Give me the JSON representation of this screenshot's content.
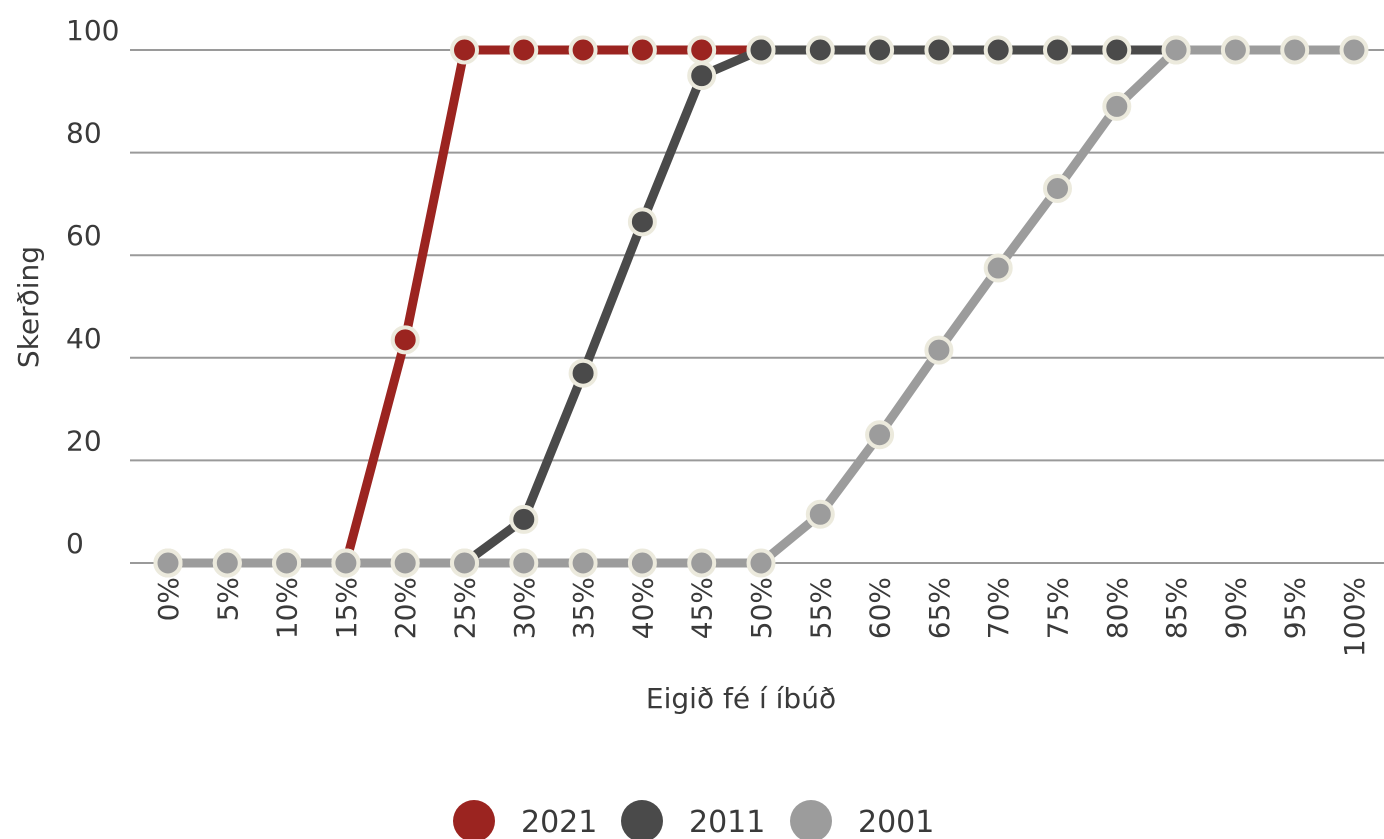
{
  "chart_data": {
    "type": "line",
    "title": "",
    "xlabel": "Eigið fé í íbúð",
    "ylabel": "Skerðing",
    "categories": [
      "0%",
      "5%",
      "10%",
      "15%",
      "20%",
      "25%",
      "30%",
      "35%",
      "40%",
      "45%",
      "50%",
      "55%",
      "60%",
      "65%",
      "70%",
      "75%",
      "80%",
      "85%",
      "90%",
      "95%",
      "100%"
    ],
    "yticks": [
      "0",
      "20",
      "40",
      "60",
      "80",
      "100"
    ],
    "ylim": [
      0,
      100
    ],
    "grid": true,
    "legend_position": "bottom",
    "series": [
      {
        "name": "2021",
        "color": "#9b2420",
        "values": [
          0,
          0,
          0,
          0,
          43.5,
          100,
          100,
          100,
          100,
          100,
          100,
          null,
          null,
          null,
          null,
          null,
          null,
          null,
          null,
          null,
          null
        ]
      },
      {
        "name": "2011",
        "color": "#4a4a4a",
        "values": [
          0,
          0,
          0,
          0,
          0,
          0,
          8.5,
          37,
          66.5,
          95,
          100,
          100,
          100,
          100,
          100,
          100,
          100,
          100,
          null,
          null,
          null
        ]
      },
      {
        "name": "2001",
        "color": "#9c9c9c",
        "values": [
          0,
          0,
          0,
          0,
          0,
          0,
          0,
          0,
          0,
          0,
          0,
          9.5,
          25,
          41.5,
          57.5,
          73,
          89,
          100,
          100,
          100,
          100
        ]
      }
    ]
  }
}
